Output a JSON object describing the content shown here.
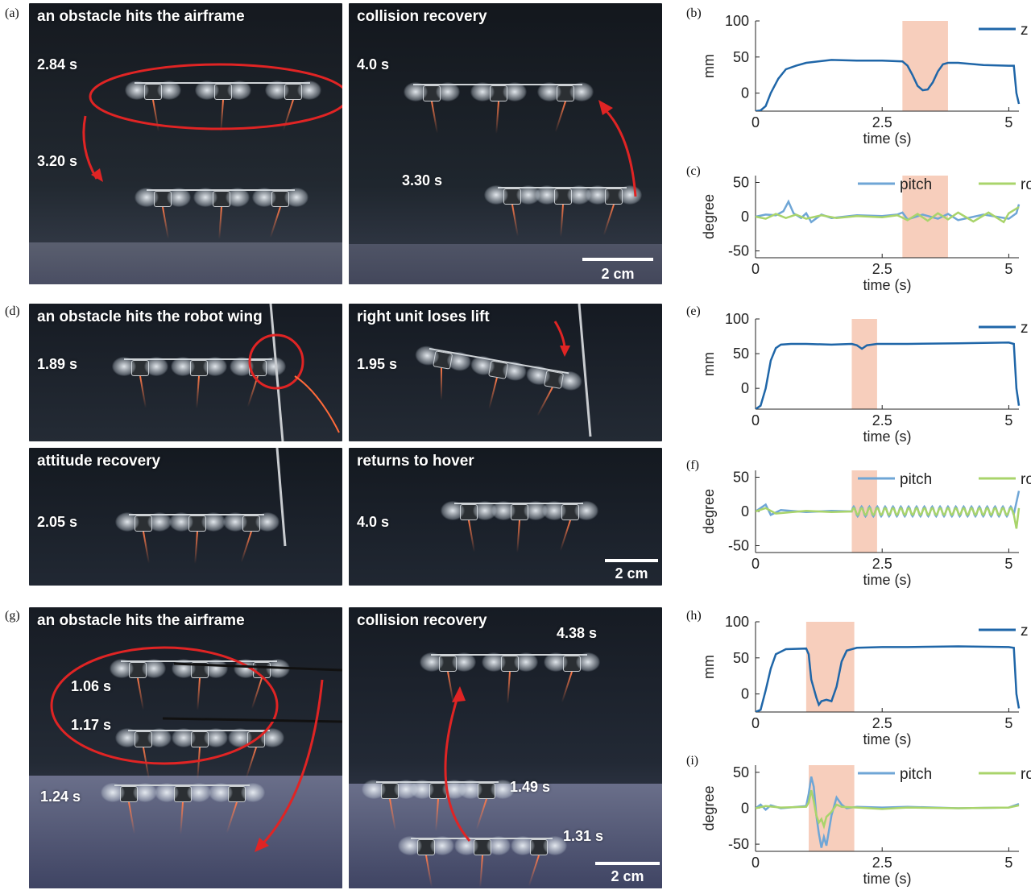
{
  "panel_labels": [
    "(a)",
    "(b)",
    "(c)",
    "(d)",
    "(e)",
    "(f)",
    "(g)",
    "(h)",
    "(i)"
  ],
  "photos": {
    "a1": {
      "title": "an obstacle hits the airframe",
      "times": [
        "2.84 s",
        "3.20 s"
      ]
    },
    "a2": {
      "title": "collision recovery",
      "times": [
        "4.0 s",
        "3.30 s"
      ],
      "scale": "2 cm"
    },
    "d1": {
      "title": "an obstacle hits the robot wing",
      "times": [
        "1.89 s"
      ]
    },
    "d2": {
      "title": "right unit loses lift",
      "times": [
        "1.95 s"
      ]
    },
    "d3": {
      "title": "attitude recovery",
      "times": [
        "2.05 s"
      ]
    },
    "d4": {
      "title": "returns to hover",
      "times": [
        "4.0 s"
      ],
      "scale": "2 cm"
    },
    "g1": {
      "title": "an obstacle hits the airframe",
      "times": [
        "1.06 s",
        "1.17 s",
        "1.24 s"
      ]
    },
    "g2": {
      "title": "collision recovery",
      "times": [
        "4.38 s",
        "1.49 s",
        "1.31 s"
      ],
      "scale": "2 cm"
    }
  },
  "colors": {
    "z": "#1f66a8",
    "pitch": "#6fa6d6",
    "roll": "#a9d46b",
    "shade": "#f6c6b0",
    "arrow": "#e02424"
  },
  "chart_data": [
    {
      "id": "b",
      "type": "line",
      "xlabel": "time (s)",
      "ylabel": "mm",
      "xlim": [
        0,
        5.2
      ],
      "ylim": [
        -25,
        100
      ],
      "xticks": [
        "0",
        "2.5",
        "5"
      ],
      "yticks": [
        "100",
        "50",
        "0"
      ],
      "shade": [
        2.9,
        3.8
      ],
      "legend": [
        "z"
      ],
      "series": [
        {
          "name": "z",
          "x": [
            0,
            0.1,
            0.2,
            0.3,
            0.45,
            0.6,
            0.8,
            1.0,
            1.5,
            2.0,
            2.5,
            2.9,
            3.0,
            3.1,
            3.2,
            3.3,
            3.4,
            3.5,
            3.6,
            3.7,
            3.8,
            4.0,
            4.5,
            5.0,
            5.1,
            5.15,
            5.2
          ],
          "y": [
            -25,
            -24,
            -18,
            0,
            20,
            33,
            38,
            42,
            46,
            45,
            45,
            44,
            38,
            25,
            10,
            4,
            5,
            15,
            30,
            40,
            42,
            42,
            39,
            38,
            38,
            0,
            -15
          ]
        }
      ]
    },
    {
      "id": "c",
      "type": "line",
      "xlabel": "time (s)",
      "ylabel": "degree",
      "xlim": [
        0,
        5.2
      ],
      "ylim": [
        -60,
        60
      ],
      "xticks": [
        "0",
        "2.5",
        "5"
      ],
      "yticks": [
        "50",
        "0",
        "-50"
      ],
      "shade": [
        2.9,
        3.8
      ],
      "legend": [
        "pitch",
        "roll"
      ],
      "series": [
        {
          "name": "pitch",
          "x": [
            0,
            0.2,
            0.4,
            0.55,
            0.65,
            0.75,
            0.9,
            1.0,
            1.1,
            1.3,
            1.5,
            2.0,
            2.5,
            2.8,
            2.9,
            3.0,
            3.3,
            3.6,
            3.8,
            4.0,
            4.5,
            5.0,
            5.15,
            5.2
          ],
          "y": [
            0,
            3,
            2,
            8,
            22,
            5,
            -2,
            5,
            -8,
            3,
            -2,
            2,
            1,
            3,
            6,
            -4,
            3,
            -3,
            4,
            -5,
            3,
            -3,
            5,
            18
          ]
        },
        {
          "name": "roll",
          "x": [
            0,
            0.2,
            0.4,
            0.6,
            0.8,
            1.0,
            1.3,
            1.6,
            2.0,
            2.5,
            2.8,
            3.0,
            3.2,
            3.4,
            3.6,
            3.8,
            4.0,
            4.3,
            4.6,
            4.9,
            5.0,
            5.2
          ],
          "y": [
            0,
            -3,
            4,
            -2,
            3,
            -3,
            2,
            -2,
            1,
            -1,
            2,
            -5,
            4,
            -6,
            5,
            -4,
            6,
            -7,
            6,
            -8,
            5,
            14
          ]
        }
      ]
    },
    {
      "id": "e",
      "type": "line",
      "xlabel": "time (s)",
      "ylabel": "mm",
      "xlim": [
        0,
        5.2
      ],
      "ylim": [
        -30,
        100
      ],
      "xticks": [
        "0",
        "2.5",
        "5"
      ],
      "yticks": [
        "100",
        "50",
        "0"
      ],
      "shade": [
        1.9,
        2.4
      ],
      "legend": [
        "z"
      ],
      "series": [
        {
          "name": "z",
          "x": [
            0,
            0.1,
            0.2,
            0.3,
            0.4,
            0.5,
            0.7,
            1.0,
            1.5,
            1.9,
            2.0,
            2.1,
            2.2,
            2.4,
            3.0,
            4.0,
            5.0,
            5.1,
            5.15,
            5.2
          ],
          "y": [
            -30,
            -25,
            0,
            40,
            58,
            63,
            64,
            64,
            63,
            64,
            62,
            57,
            62,
            64,
            64,
            65,
            66,
            64,
            0,
            -25
          ]
        }
      ]
    },
    {
      "id": "f",
      "type": "line",
      "xlabel": "time (s)",
      "ylabel": "degree",
      "xlim": [
        0,
        5.2
      ],
      "ylim": [
        -60,
        60
      ],
      "xticks": [
        "0",
        "2.5",
        "5"
      ],
      "yticks": [
        "50",
        "0",
        "-50"
      ],
      "shade": [
        1.9,
        2.4
      ],
      "legend": [
        "pitch",
        "roll"
      ],
      "series": [
        {
          "name": "pitch",
          "oscillate": [
            1.9,
            5.1,
            0.155,
            7
          ],
          "x": [
            0,
            0.2,
            0.3,
            0.5,
            1.0,
            1.5,
            1.9,
            5.1,
            5.2
          ],
          "y": [
            0,
            10,
            -5,
            2,
            -1,
            1,
            0,
            0,
            30
          ]
        },
        {
          "name": "roll",
          "oscillate": [
            1.9,
            5.1,
            0.155,
            5
          ],
          "x": [
            0,
            0.2,
            0.4,
            1.0,
            1.5,
            1.9,
            5.1,
            5.15,
            5.2
          ],
          "y": [
            0,
            5,
            -3,
            1,
            -1,
            0,
            0,
            -25,
            5
          ]
        }
      ]
    },
    {
      "id": "h",
      "type": "line",
      "xlabel": "time (s)",
      "ylabel": "mm",
      "xlim": [
        0,
        5.2
      ],
      "ylim": [
        -25,
        100
      ],
      "xticks": [
        "0",
        "2.5",
        "5"
      ],
      "yticks": [
        "100",
        "50",
        "0"
      ],
      "shade": [
        1.0,
        1.95
      ],
      "legend": [
        "z"
      ],
      "series": [
        {
          "name": "z",
          "x": [
            0,
            0.1,
            0.2,
            0.3,
            0.4,
            0.6,
            1.0,
            1.05,
            1.1,
            1.2,
            1.25,
            1.3,
            1.4,
            1.5,
            1.6,
            1.7,
            1.8,
            2.0,
            2.5,
            3.0,
            4.0,
            5.0,
            5.1,
            5.15,
            5.2
          ],
          "y": [
            -25,
            -22,
            5,
            35,
            55,
            62,
            63,
            55,
            20,
            -5,
            -15,
            -10,
            -8,
            -10,
            10,
            45,
            60,
            64,
            65,
            65,
            66,
            65,
            64,
            0,
            -20
          ]
        }
      ]
    },
    {
      "id": "i",
      "type": "line",
      "xlabel": "time (s)",
      "ylabel": "degree",
      "xlim": [
        0,
        5.2
      ],
      "ylim": [
        -60,
        60
      ],
      "xticks": [
        "0",
        "2.5",
        "5"
      ],
      "yticks": [
        "50",
        "0",
        "-50"
      ],
      "shade": [
        1.05,
        1.95
      ],
      "legend": [
        "pitch",
        "roll"
      ],
      "series": [
        {
          "name": "pitch",
          "x": [
            0,
            0.1,
            0.2,
            0.3,
            0.5,
            1.0,
            1.05,
            1.1,
            1.15,
            1.2,
            1.25,
            1.3,
            1.35,
            1.4,
            1.5,
            1.6,
            1.7,
            1.8,
            2.0,
            2.5,
            3.0,
            4.0,
            5.0,
            5.2
          ],
          "y": [
            0,
            5,
            -2,
            4,
            0,
            3,
            20,
            44,
            30,
            -10,
            -35,
            -55,
            -40,
            -52,
            -10,
            15,
            5,
            0,
            2,
            1,
            2,
            0,
            1,
            6
          ]
        },
        {
          "name": "roll",
          "x": [
            0,
            0.2,
            0.5,
            1.0,
            1.05,
            1.1,
            1.15,
            1.2,
            1.25,
            1.3,
            1.35,
            1.4,
            1.5,
            1.6,
            1.7,
            2.0,
            2.5,
            3.0,
            4.0,
            5.0,
            5.2
          ],
          "y": [
            0,
            3,
            1,
            2,
            8,
            25,
            10,
            -10,
            -20,
            -15,
            -25,
            -12,
            -5,
            5,
            2,
            1,
            -1,
            1,
            0,
            1,
            4
          ]
        }
      ]
    }
  ]
}
